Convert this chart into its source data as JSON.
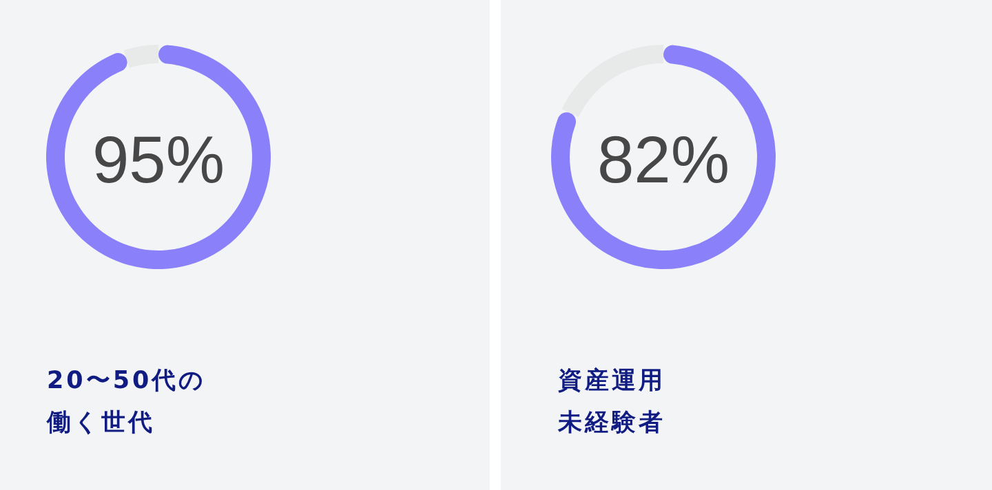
{
  "chart_data": [
    {
      "type": "donut",
      "title": "20〜50代の働く世代",
      "categories": [
        null,
        null
      ],
      "values": [
        95,
        5
      ],
      "colors": [
        "#8a80fa",
        "#e7eae9"
      ],
      "value_labels": [
        "95%",
        null
      ]
    },
    {
      "type": "donut",
      "title": "資産運用未経験者",
      "categories": [
        null,
        null
      ],
      "values": [
        82,
        18
      ],
      "colors": [
        "#8a80fa",
        "#e7eae9"
      ],
      "value_labels": [
        "82%",
        null
      ]
    }
  ]
}
